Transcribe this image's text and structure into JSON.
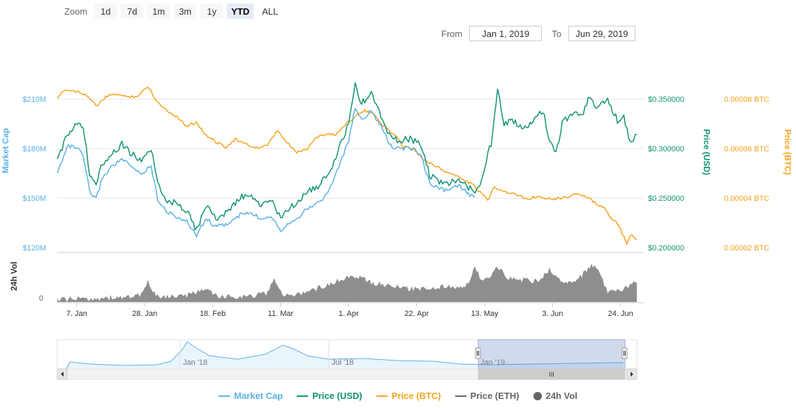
{
  "zoom": {
    "label": "Zoom",
    "buttons": [
      "1d",
      "7d",
      "1m",
      "3m",
      "1y",
      "YTD",
      "ALL"
    ],
    "active": "YTD"
  },
  "range": {
    "from_label": "From",
    "from_value": "Jan 1, 2019",
    "to_label": "To",
    "to_value": "Jun 29, 2019"
  },
  "colors": {
    "market_cap": "#5ab1e6",
    "price_usd": "#0f9372",
    "price_btc": "#f7a21b",
    "price_eth": "#666666",
    "volume": "#7a7a7a"
  },
  "axes": {
    "left_title": "Market Cap",
    "left_ticks": [
      "$210M",
      "$180M",
      "$150M",
      "$120M"
    ],
    "right_usd_title": "Price (USD)",
    "right_usd_ticks": [
      "$0.350000",
      "$0.300000",
      "$0.250000",
      "$0.200000"
    ],
    "right_btc_title": "Price (BTC)",
    "right_btc_ticks": [
      "0.00008 BTC",
      "0.00006 BTC",
      "0.00004 BTC",
      "0.00002 BTC"
    ],
    "volume_title": "24h Vol",
    "volume_ticks": [
      "0"
    ],
    "x_ticks": [
      "7. Jan",
      "28. Jan",
      "18. Feb",
      "11. Mar",
      "1. Apr",
      "22. Apr",
      "13. May",
      "3. Jun",
      "24. Jun"
    ]
  },
  "navigator": {
    "labels": [
      "Jan '18",
      "Jul '18",
      "Jan '19"
    ],
    "scroll_grip": "III"
  },
  "legend": [
    {
      "label": "Market Cap",
      "color": "#5ab1e6",
      "shape": "line"
    },
    {
      "label": "Price (USD)",
      "color": "#0f9372",
      "shape": "line"
    },
    {
      "label": "Price (BTC)",
      "color": "#f7a21b",
      "shape": "line"
    },
    {
      "label": "Price (ETH)",
      "color": "#666666",
      "shape": "line"
    },
    {
      "label": "24h Vol",
      "color": "#666666",
      "shape": "dot"
    }
  ],
  "chart_data": {
    "type": "line",
    "x_start": "2019-01-01",
    "x_end": "2019-06-29",
    "x_ticks": [
      {
        "date": "2019-01-07",
        "label": "7. Jan"
      },
      {
        "date": "2019-01-28",
        "label": "28. Jan"
      },
      {
        "date": "2019-02-18",
        "label": "18. Feb"
      },
      {
        "date": "2019-03-11",
        "label": "11. Mar"
      },
      {
        "date": "2019-04-01",
        "label": "1. Apr"
      },
      {
        "date": "2019-04-22",
        "label": "22. Apr"
      },
      {
        "date": "2019-05-13",
        "label": "13. May"
      },
      {
        "date": "2019-06-03",
        "label": "3. Jun"
      },
      {
        "date": "2019-06-24",
        "label": "24. Jun"
      }
    ],
    "ylim_market_cap_musd": [
      120,
      230
    ],
    "ylim_price_usd": [
      0.2,
      0.37
    ],
    "ylim_price_btc": [
      2e-05,
      0.0001
    ],
    "series": [
      {
        "name": "Price (USD)",
        "axis": "price_usd",
        "points": [
          [
            "2019-01-01",
            0.287
          ],
          [
            "2019-01-04",
            0.315
          ],
          [
            "2019-01-07",
            0.328
          ],
          [
            "2019-01-09",
            0.322
          ],
          [
            "2019-01-11",
            0.276
          ],
          [
            "2019-01-13",
            0.266
          ],
          [
            "2019-01-15",
            0.287
          ],
          [
            "2019-01-18",
            0.296
          ],
          [
            "2019-01-21",
            0.305
          ],
          [
            "2019-01-24",
            0.295
          ],
          [
            "2019-01-27",
            0.289
          ],
          [
            "2019-01-30",
            0.3
          ],
          [
            "2019-02-01",
            0.264
          ],
          [
            "2019-02-04",
            0.249
          ],
          [
            "2019-02-07",
            0.244
          ],
          [
            "2019-02-10",
            0.239
          ],
          [
            "2019-02-13",
            0.218
          ],
          [
            "2019-02-16",
            0.243
          ],
          [
            "2019-02-19",
            0.23
          ],
          [
            "2019-02-23",
            0.238
          ],
          [
            "2019-02-27",
            0.252
          ],
          [
            "2019-03-02",
            0.251
          ],
          [
            "2019-03-05",
            0.244
          ],
          [
            "2019-03-08",
            0.248
          ],
          [
            "2019-03-11",
            0.231
          ],
          [
            "2019-03-14",
            0.24
          ],
          [
            "2019-03-17",
            0.251
          ],
          [
            "2019-03-20",
            0.258
          ],
          [
            "2019-03-23",
            0.264
          ],
          [
            "2019-03-26",
            0.275
          ],
          [
            "2019-03-29",
            0.301
          ],
          [
            "2019-04-01",
            0.325
          ],
          [
            "2019-04-03",
            0.366
          ],
          [
            "2019-04-05",
            0.346
          ],
          [
            "2019-04-08",
            0.355
          ],
          [
            "2019-04-11",
            0.334
          ],
          [
            "2019-04-14",
            0.312
          ],
          [
            "2019-04-17",
            0.309
          ],
          [
            "2019-04-20",
            0.311
          ],
          [
            "2019-04-23",
            0.306
          ],
          [
            "2019-04-26",
            0.274
          ],
          [
            "2019-04-29",
            0.268
          ],
          [
            "2019-05-02",
            0.265
          ],
          [
            "2019-05-05",
            0.271
          ],
          [
            "2019-05-08",
            0.262
          ],
          [
            "2019-05-10",
            0.258
          ],
          [
            "2019-05-12",
            0.269
          ],
          [
            "2019-05-15",
            0.306
          ],
          [
            "2019-05-17",
            0.361
          ],
          [
            "2019-05-19",
            0.325
          ],
          [
            "2019-05-22",
            0.329
          ],
          [
            "2019-05-25",
            0.318
          ],
          [
            "2019-05-28",
            0.331
          ],
          [
            "2019-05-31",
            0.339
          ],
          [
            "2019-06-02",
            0.311
          ],
          [
            "2019-06-04",
            0.297
          ],
          [
            "2019-06-06",
            0.326
          ],
          [
            "2019-06-09",
            0.335
          ],
          [
            "2019-06-12",
            0.333
          ],
          [
            "2019-06-14",
            0.352
          ],
          [
            "2019-06-17",
            0.342
          ],
          [
            "2019-06-20",
            0.349
          ],
          [
            "2019-06-23",
            0.329
          ],
          [
            "2019-06-25",
            0.332
          ],
          [
            "2019-06-27",
            0.306
          ],
          [
            "2019-06-29",
            0.315
          ]
        ]
      },
      {
        "name": "Market Cap",
        "axis": "market_cap",
        "points": [
          [
            "2019-01-01",
            165
          ],
          [
            "2019-01-04",
            182
          ],
          [
            "2019-01-07",
            181
          ],
          [
            "2019-01-09",
            176
          ],
          [
            "2019-01-11",
            154
          ],
          [
            "2019-01-13",
            150
          ],
          [
            "2019-01-15",
            163
          ],
          [
            "2019-01-18",
            170
          ],
          [
            "2019-01-21",
            174
          ],
          [
            "2019-01-24",
            169
          ],
          [
            "2019-01-27",
            165
          ],
          [
            "2019-01-30",
            170
          ],
          [
            "2019-02-01",
            150
          ],
          [
            "2019-02-04",
            142
          ],
          [
            "2019-02-07",
            139
          ],
          [
            "2019-02-10",
            136
          ],
          [
            "2019-02-13",
            128
          ],
          [
            "2019-02-16",
            138
          ],
          [
            "2019-02-19",
            133
          ],
          [
            "2019-02-23",
            135
          ],
          [
            "2019-02-27",
            141
          ],
          [
            "2019-03-02",
            141
          ],
          [
            "2019-03-05",
            138
          ],
          [
            "2019-03-08",
            140
          ],
          [
            "2019-03-11",
            131
          ],
          [
            "2019-03-14",
            136
          ],
          [
            "2019-03-17",
            140
          ],
          [
            "2019-03-20",
            145
          ],
          [
            "2019-03-23",
            148
          ],
          [
            "2019-03-26",
            155
          ],
          [
            "2019-03-29",
            170
          ],
          [
            "2019-04-01",
            185
          ],
          [
            "2019-04-03",
            205
          ],
          [
            "2019-04-05",
            198
          ],
          [
            "2019-04-08",
            203
          ],
          [
            "2019-04-11",
            194
          ],
          [
            "2019-04-14",
            182
          ],
          [
            "2019-04-17",
            180
          ],
          [
            "2019-04-20",
            181
          ],
          [
            "2019-04-23",
            178
          ],
          [
            "2019-04-26",
            160
          ],
          [
            "2019-04-29",
            156
          ],
          [
            "2019-05-02",
            155
          ],
          [
            "2019-05-05",
            158
          ],
          [
            "2019-05-08",
            153
          ],
          [
            "2019-05-10",
            151
          ]
        ]
      },
      {
        "name": "Price (BTC)",
        "axis": "price_btc",
        "points": [
          [
            "2019-01-01",
            8e-05
          ],
          [
            "2019-01-03",
            8.4e-05
          ],
          [
            "2019-01-07",
            8.35e-05
          ],
          [
            "2019-01-10",
            8.2e-05
          ],
          [
            "2019-01-13",
            7.75e-05
          ],
          [
            "2019-01-16",
            8.1e-05
          ],
          [
            "2019-01-19",
            8.25e-05
          ],
          [
            "2019-01-22",
            8.12e-05
          ],
          [
            "2019-01-26",
            8.15e-05
          ],
          [
            "2019-01-29",
            8.55e-05
          ],
          [
            "2019-02-01",
            7.9e-05
          ],
          [
            "2019-02-04",
            7.55e-05
          ],
          [
            "2019-02-07",
            7.32e-05
          ],
          [
            "2019-02-10",
            6.92e-05
          ],
          [
            "2019-02-13",
            7.1e-05
          ],
          [
            "2019-02-16",
            6.55e-05
          ],
          [
            "2019-02-19",
            6.3e-05
          ],
          [
            "2019-02-22",
            6.1e-05
          ],
          [
            "2019-02-25",
            6.4e-05
          ],
          [
            "2019-03-01",
            6.15e-05
          ],
          [
            "2019-03-04",
            6.05e-05
          ],
          [
            "2019-03-07",
            6.15e-05
          ],
          [
            "2019-03-10",
            6.75e-05
          ],
          [
            "2019-03-13",
            6.25e-05
          ],
          [
            "2019-03-16",
            5.88e-05
          ],
          [
            "2019-03-19",
            6e-05
          ],
          [
            "2019-03-22",
            6.5e-05
          ],
          [
            "2019-03-25",
            6.6e-05
          ],
          [
            "2019-03-28",
            6.6e-05
          ],
          [
            "2019-03-31",
            7e-05
          ],
          [
            "2019-04-03",
            7.35e-05
          ],
          [
            "2019-04-06",
            7.55e-05
          ],
          [
            "2019-04-09",
            7.4e-05
          ],
          [
            "2019-04-12",
            6.9e-05
          ],
          [
            "2019-04-15",
            6.6e-05
          ],
          [
            "2019-04-18",
            6.1e-05
          ],
          [
            "2019-04-21",
            6.02e-05
          ],
          [
            "2019-04-24",
            5.6e-05
          ],
          [
            "2019-04-27",
            5.4e-05
          ],
          [
            "2019-04-30",
            5.15e-05
          ],
          [
            "2019-05-03",
            5e-05
          ],
          [
            "2019-05-06",
            4.8e-05
          ],
          [
            "2019-05-09",
            4.6e-05
          ],
          [
            "2019-05-12",
            4.2e-05
          ],
          [
            "2019-05-14",
            3.95e-05
          ],
          [
            "2019-05-16",
            4.5e-05
          ],
          [
            "2019-05-19",
            4.3e-05
          ],
          [
            "2019-05-22",
            4.2e-05
          ],
          [
            "2019-05-26",
            4e-05
          ],
          [
            "2019-05-30",
            4.1e-05
          ],
          [
            "2019-06-03",
            4e-05
          ],
          [
            "2019-06-07",
            4.05e-05
          ],
          [
            "2019-06-10",
            4.2e-05
          ],
          [
            "2019-06-13",
            4.1e-05
          ],
          [
            "2019-06-16",
            3.85e-05
          ],
          [
            "2019-06-19",
            3.6e-05
          ],
          [
            "2019-06-21",
            3.25e-05
          ],
          [
            "2019-06-23",
            3e-05
          ],
          [
            "2019-06-25",
            2.45e-05
          ],
          [
            "2019-06-26",
            2.15e-05
          ],
          [
            "2019-06-27",
            2.55e-05
          ],
          [
            "2019-06-29",
            2.35e-05
          ]
        ]
      },
      {
        "name": "24h Vol",
        "type": "area",
        "points": [
          [
            "2019-01-01",
            0.05
          ],
          [
            "2019-01-10",
            0.08
          ],
          [
            "2019-01-20",
            0.1
          ],
          [
            "2019-01-27",
            0.15
          ],
          [
            "2019-01-29",
            0.45
          ],
          [
            "2019-02-01",
            0.12
          ],
          [
            "2019-02-10",
            0.14
          ],
          [
            "2019-02-15",
            0.3
          ],
          [
            "2019-02-20",
            0.12
          ],
          [
            "2019-03-01",
            0.13
          ],
          [
            "2019-03-07",
            0.2
          ],
          [
            "2019-03-09",
            0.55
          ],
          [
            "2019-03-12",
            0.12
          ],
          [
            "2019-03-20",
            0.25
          ],
          [
            "2019-03-25",
            0.38
          ],
          [
            "2019-03-31",
            0.55
          ],
          [
            "2019-04-03",
            0.6
          ],
          [
            "2019-04-08",
            0.45
          ],
          [
            "2019-04-15",
            0.35
          ],
          [
            "2019-04-20",
            0.3
          ],
          [
            "2019-04-25",
            0.32
          ],
          [
            "2019-05-01",
            0.35
          ],
          [
            "2019-05-05",
            0.3
          ],
          [
            "2019-05-08",
            0.42
          ],
          [
            "2019-05-10",
            0.85
          ],
          [
            "2019-05-12",
            0.45
          ],
          [
            "2019-05-15",
            0.6
          ],
          [
            "2019-05-17",
            0.8
          ],
          [
            "2019-05-20",
            0.55
          ],
          [
            "2019-05-25",
            0.5
          ],
          [
            "2019-05-30",
            0.48
          ],
          [
            "2019-06-02",
            0.75
          ],
          [
            "2019-06-05",
            0.5
          ],
          [
            "2019-06-10",
            0.45
          ],
          [
            "2019-06-15",
            0.85
          ],
          [
            "2019-06-17",
            0.75
          ],
          [
            "2019-06-20",
            0.2
          ],
          [
            "2019-06-25",
            0.3
          ],
          [
            "2019-06-29",
            0.45
          ]
        ]
      }
    ]
  }
}
